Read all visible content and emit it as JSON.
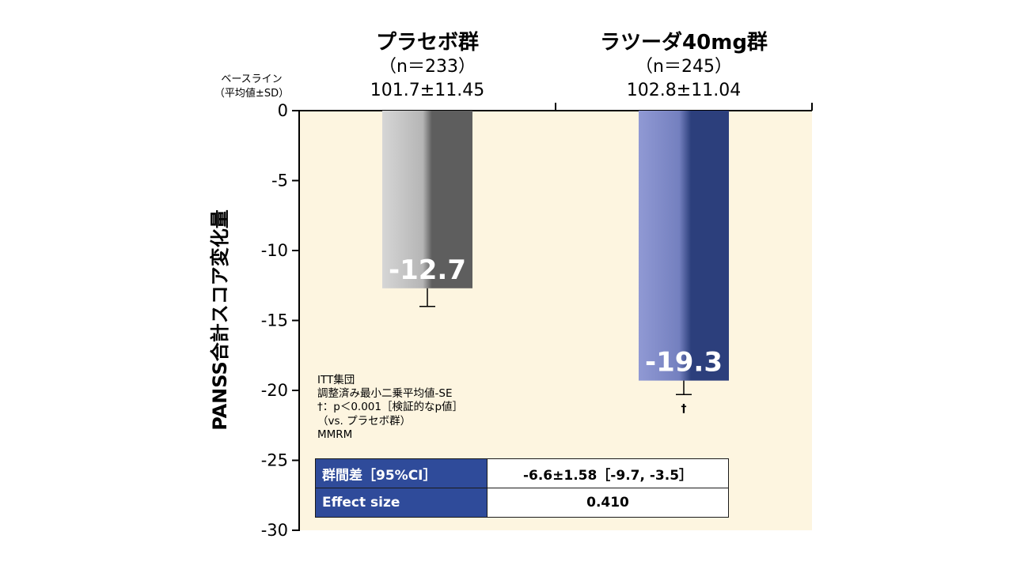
{
  "chart_data": {
    "type": "bar",
    "ylabel": "PANSS合計スコア変化量",
    "ylim": [
      -30,
      0
    ],
    "yticks": [
      "0",
      "-5",
      "-10",
      "-15",
      "-20",
      "-25",
      "-30"
    ],
    "baseline_label": [
      "ベースライン",
      "（平均値±SD）"
    ],
    "groups": [
      {
        "title": "プラセボ群",
        "n": "（n＝233）",
        "baseline": "101.7±11.45",
        "value": -12.7,
        "value_label": "-12.7",
        "se": 1.3,
        "marker": "",
        "colors": [
          "#d0d0d0",
          "#5c5c5c"
        ]
      },
      {
        "title": "ラツーダ40mg群",
        "n": "（n＝245）",
        "baseline": "102.8±11.04",
        "value": -19.3,
        "value_label": "-19.3",
        "se": 1.0,
        "marker": "†",
        "colors": [
          "#8c98d2",
          "#2a3c7a"
        ]
      }
    ],
    "plot_background": "#fdf5e0"
  },
  "notes": [
    "ITT集団",
    "調整済み最小二乗平均値-SE",
    "†：p＜0.001［検証的なp値］",
    "（vs. プラセボ群）",
    "MMRM"
  ],
  "stats_table": [
    {
      "label": "群間差［95%CI］",
      "value": "-6.6±1.58［-9.7, -3.5］"
    },
    {
      "label": "Effect size",
      "value": "0.410"
    }
  ]
}
